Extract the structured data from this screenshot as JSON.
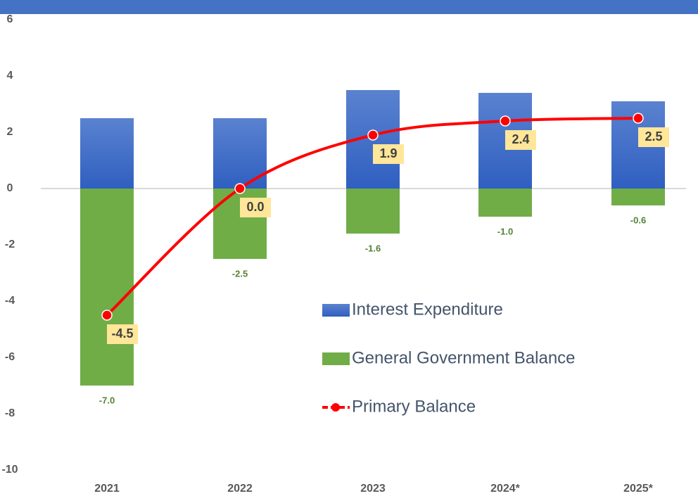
{
  "chart_data": {
    "type": "bar",
    "categories": [
      "2021",
      "2022",
      "2023",
      "2024*",
      "2025*"
    ],
    "series": [
      {
        "name": "Interest Expenditure",
        "color": "#4472c4",
        "values": [
          2.5,
          2.5,
          3.5,
          3.4,
          3.1
        ]
      },
      {
        "name": "General Government Balance",
        "color": "#70ad47",
        "values": [
          -7.0,
          -2.5,
          -1.6,
          -1.0,
          -0.6
        ],
        "value_labels": [
          "-7.0",
          "-2.5",
          "-1.6",
          "-1.0",
          "-0.6"
        ]
      },
      {
        "name": "Primary Balance",
        "type": "line",
        "color": "#ff0000",
        "values": [
          -4.5,
          0.0,
          1.9,
          2.4,
          2.5
        ],
        "value_labels": [
          "-4.5",
          "0.0",
          "1.9",
          "2.4",
          "2.5"
        ]
      }
    ],
    "ylim": [
      -10,
      6
    ],
    "yticks": [
      -10,
      -8,
      -6,
      -4,
      -2,
      0,
      2,
      4,
      6
    ],
    "grid": false
  }
}
